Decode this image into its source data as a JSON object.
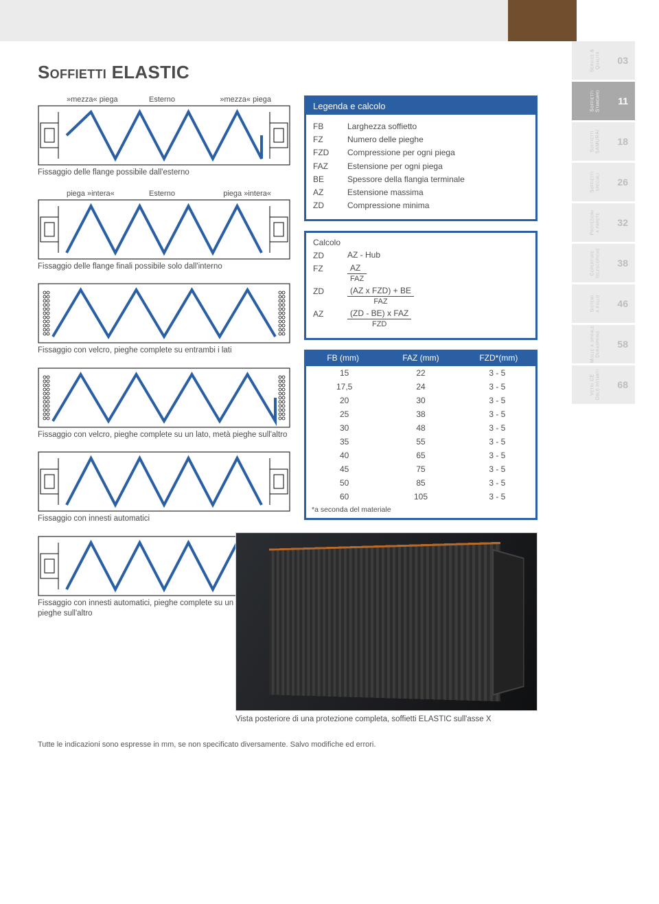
{
  "title_pre": "S",
  "title_sc": "offietti",
  "title_post": " ELASTIC",
  "diagrams": [
    {
      "labels": [
        "»mezza« piega",
        "Esterno",
        "»mezza« piega"
      ],
      "caption": "Fissaggio delle flange possibile dall'esterno"
    },
    {
      "labels": [
        "piega »intera«",
        "Esterno",
        "piega »intera«"
      ],
      "caption": "Fissaggio delle flange finali possibile solo dall'interno"
    },
    {
      "labels": [],
      "caption": "Fissaggio con velcro, pieghe complete su entrambi i lati"
    },
    {
      "labels": [],
      "caption": "Fissaggio con velcro, pieghe complete su un lato, metà pieghe sull'altro"
    },
    {
      "labels": [],
      "caption": "Fissaggio con innesti automatici"
    },
    {
      "labels": [],
      "caption": "Fissaggio con innesti automatici, pieghe complete su un lato, mezza pieghe sull'altro"
    }
  ],
  "legend": {
    "title": "Legenda e calcolo",
    "rows": [
      {
        "k": "FB",
        "v": "Larghezza soffietto"
      },
      {
        "k": "FZ",
        "v": "Numero delle pieghe"
      },
      {
        "k": "FZD",
        "v": "Compressione per ogni piega"
      },
      {
        "k": "FAZ",
        "v": "Estensione per ogni piega"
      },
      {
        "k": "BE",
        "v": "Spessore della flangia terminale"
      },
      {
        "k": "AZ",
        "v": "Estensione massima"
      },
      {
        "k": "ZD",
        "v": "Compressione minima"
      }
    ]
  },
  "calc": {
    "title": "Calcolo",
    "rows": [
      {
        "k": "ZD",
        "plain": "AZ - Hub"
      },
      {
        "k": "FZ",
        "num": "AZ",
        "den": "FAZ"
      },
      {
        "k": "ZD",
        "num": "(AZ x FZD) + BE",
        "den": "FAZ"
      },
      {
        "k": "AZ",
        "num": "(ZD - BE) x FAZ",
        "den": "FZD"
      }
    ]
  },
  "table": {
    "headers": [
      "FB (mm)",
      "FAZ (mm)",
      "FZD*(mm)"
    ],
    "rows": [
      [
        "15",
        "22",
        "3 - 5"
      ],
      [
        "17,5",
        "24",
        "3 - 5"
      ],
      [
        "20",
        "30",
        "3 - 5"
      ],
      [
        "25",
        "38",
        "3 - 5"
      ],
      [
        "30",
        "48",
        "3 - 5"
      ],
      [
        "35",
        "55",
        "3 - 5"
      ],
      [
        "40",
        "65",
        "3 - 5"
      ],
      [
        "45",
        "75",
        "3 - 5"
      ],
      [
        "50",
        "85",
        "3 - 5"
      ],
      [
        "60",
        "105",
        "3 - 5"
      ]
    ],
    "note": "*a seconda del materiale"
  },
  "photo_caption": "Vista posteriore di una protezione completa, soffietti ELASTIC sull'asse X",
  "footnote": "Tutte le indicazioni sono espresse in mm, se non specificato diversamente. Salvo modifiche ed errori.",
  "tabs": [
    {
      "label": "03",
      "vlabel": "Service &\nQualità",
      "style": "light"
    },
    {
      "label": "11",
      "vlabel": "Soffietti\nStandard",
      "style": "grey"
    },
    {
      "label": "18",
      "vlabel": "Soffietti\nSAMURAI",
      "style": "light"
    },
    {
      "label": "26",
      "vlabel": "Soffietti\nspeciali",
      "style": "light"
    },
    {
      "label": "32",
      "vlabel": "Protezioni\na parete",
      "style": "light"
    },
    {
      "label": "38",
      "vlabel": "Coperture\ntelescopiche",
      "style": "light"
    },
    {
      "label": "46",
      "vlabel": "Sistemi\na rullo",
      "style": "light"
    },
    {
      "label": "58",
      "vlabel": "Molle a spirale\nDuraspring",
      "style": "light"
    },
    {
      "label": "68",
      "vlabel": "Vetri CE\nOblò rotanti",
      "style": "light"
    }
  ],
  "colors": {
    "primary": "#2a5fa4",
    "stroke": "#000000"
  }
}
